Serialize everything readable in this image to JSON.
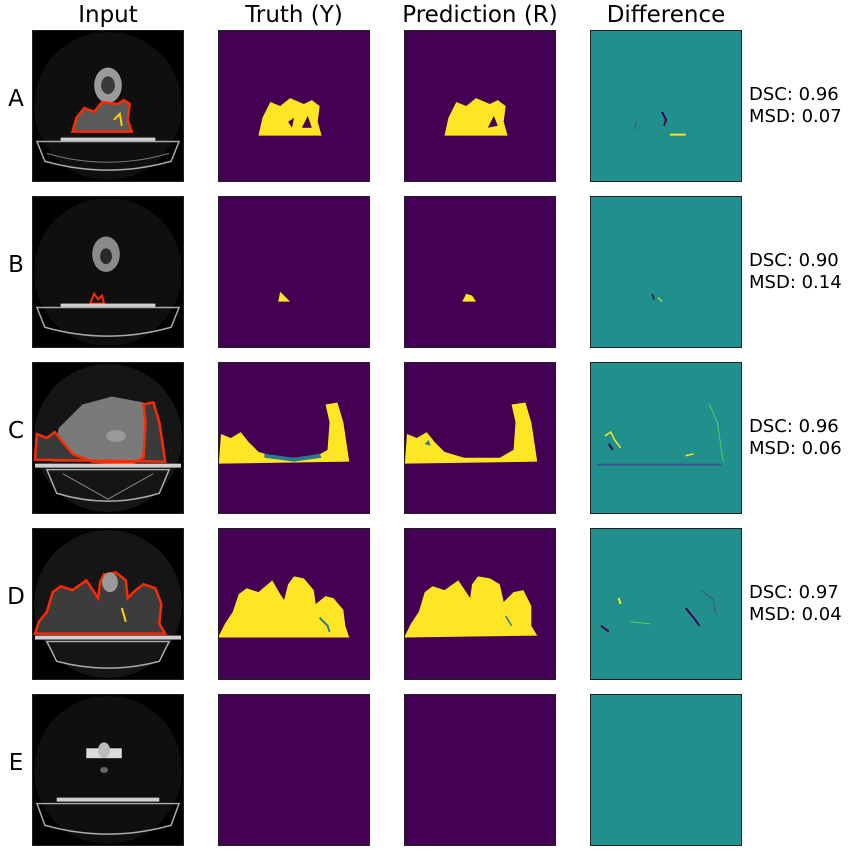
{
  "columns": [
    "Input",
    "Truth (Y)",
    "Prediction (R)",
    "Difference"
  ],
  "rows": [
    {
      "label": "A",
      "dsc": "DSC: 0.96",
      "msd": "MSD: 0.07"
    },
    {
      "label": "B",
      "dsc": "DSC: 0.90",
      "msd": "MSD: 0.14"
    },
    {
      "label": "C",
      "dsc": "DSC: 0.96",
      "msd": "MSD: 0.06"
    },
    {
      "label": "D",
      "dsc": "DSC: 0.97",
      "msd": "MSD: 0.04"
    },
    {
      "label": "E",
      "dsc": "",
      "msd": ""
    }
  ],
  "colors": {
    "background_mask": "#440154",
    "foreground_mask": "#fde725",
    "difference_bg": "#21908d",
    "difference_pos": "#fde725",
    "difference_neg": "#440154",
    "contour": "#ff2a00",
    "ct_background": "#000000"
  }
}
